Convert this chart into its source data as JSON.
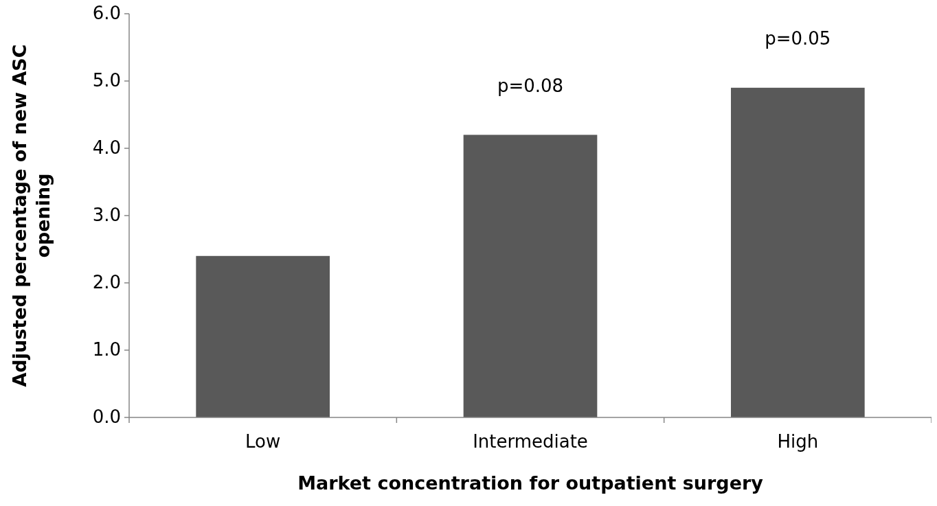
{
  "chart_data": {
    "type": "bar",
    "xlabel": "Market concentration for outpatient surgery",
    "ylabel": "Adjusted percentage of new ASC opening",
    "categories": [
      "Low",
      "Intermediate",
      "High"
    ],
    "values": [
      2.4,
      4.2,
      4.9
    ],
    "color": "#595959",
    "ylim": [
      0,
      6
    ],
    "yticks": [
      {
        "value": 0,
        "label": "0.0"
      },
      {
        "value": 1,
        "label": "1.0"
      },
      {
        "value": 2,
        "label": "2.0"
      },
      {
        "value": 3,
        "label": "3.0"
      },
      {
        "value": 4,
        "label": "4.0"
      },
      {
        "value": 5,
        "label": "5.0"
      },
      {
        "value": 6,
        "label": "6.0"
      }
    ],
    "annotations": [
      "p=0.08",
      "p=0.05"
    ],
    "grid": false
  }
}
